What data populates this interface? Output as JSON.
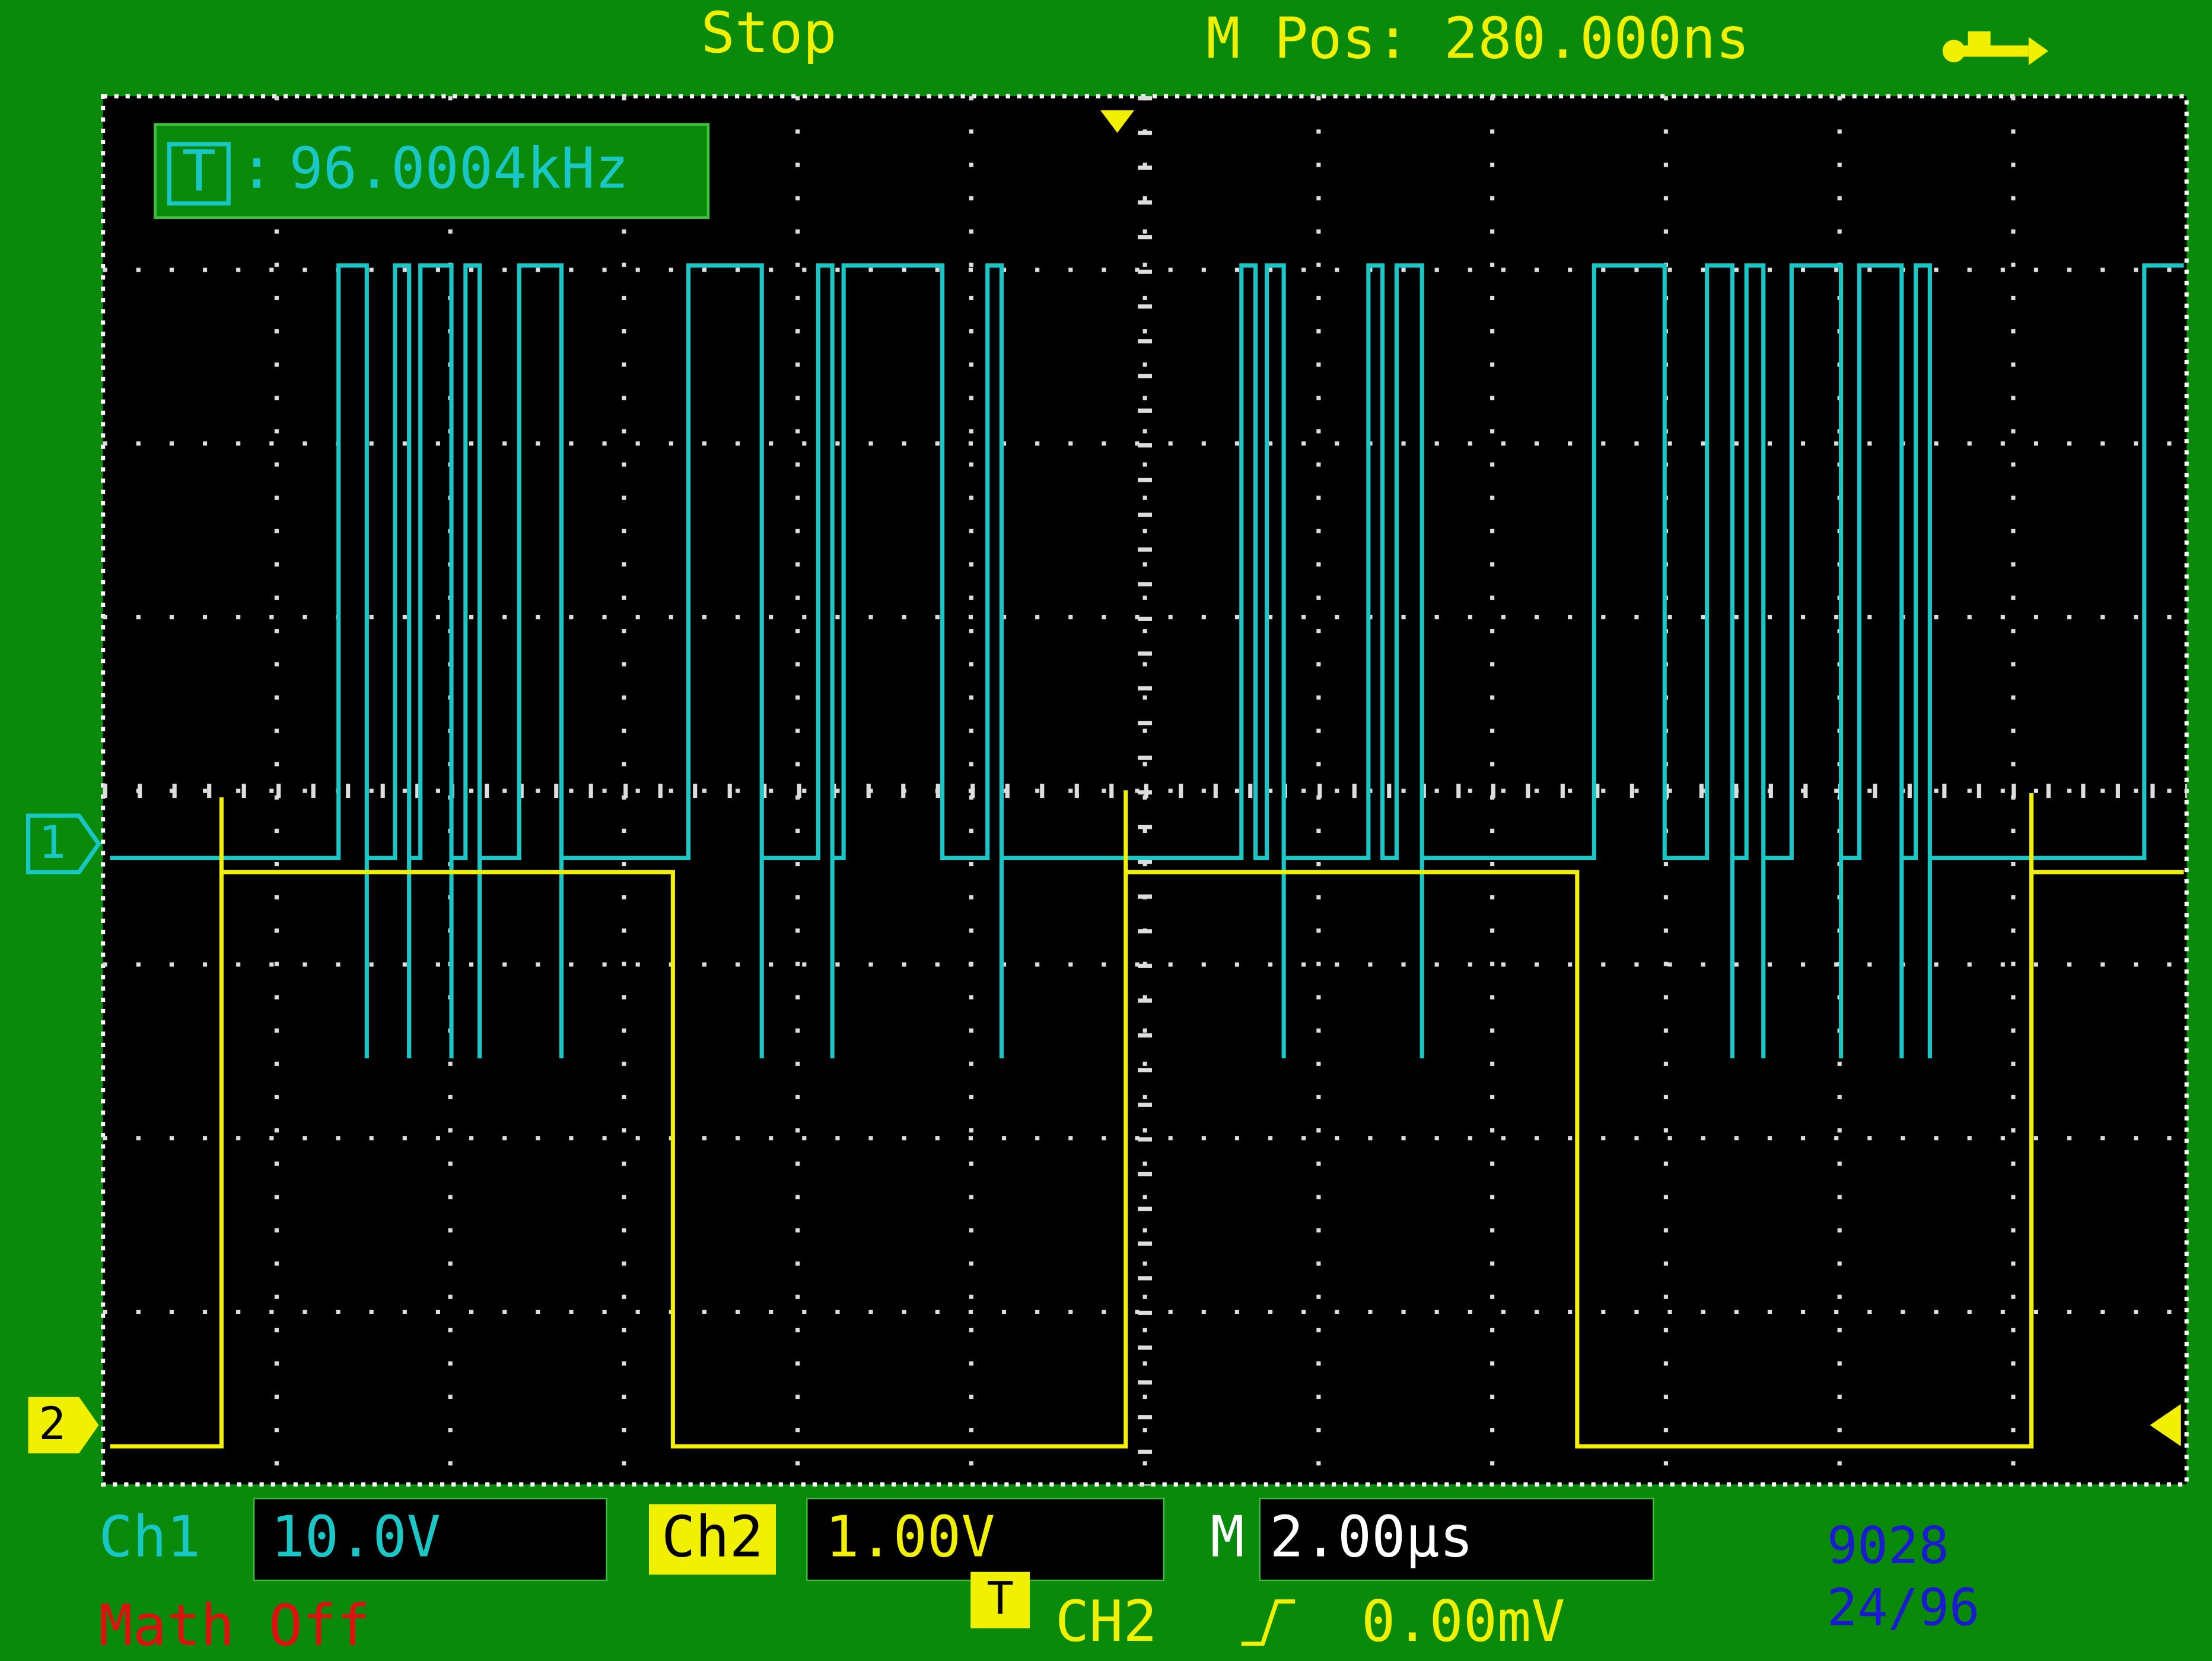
{
  "header": {
    "status": "Stop",
    "position": "M Pos: 280.000ns"
  },
  "frequency": {
    "source": "T",
    "separator": ":",
    "value": "96.0004kHz"
  },
  "markers": {
    "ch1": "1",
    "ch2": "2"
  },
  "footer": {
    "ch1": {
      "label": "Ch1",
      "scale": "10.0V"
    },
    "ch2": {
      "label": "Ch2",
      "scale": "1.00V"
    },
    "timebase": {
      "label": "M",
      "scale": "2.00µs"
    },
    "math": "Math Off",
    "trigger": {
      "icon": "T",
      "source": "CH2",
      "level": "0.00mV"
    },
    "counter": [
      "9028",
      "24/96"
    ]
  }
}
